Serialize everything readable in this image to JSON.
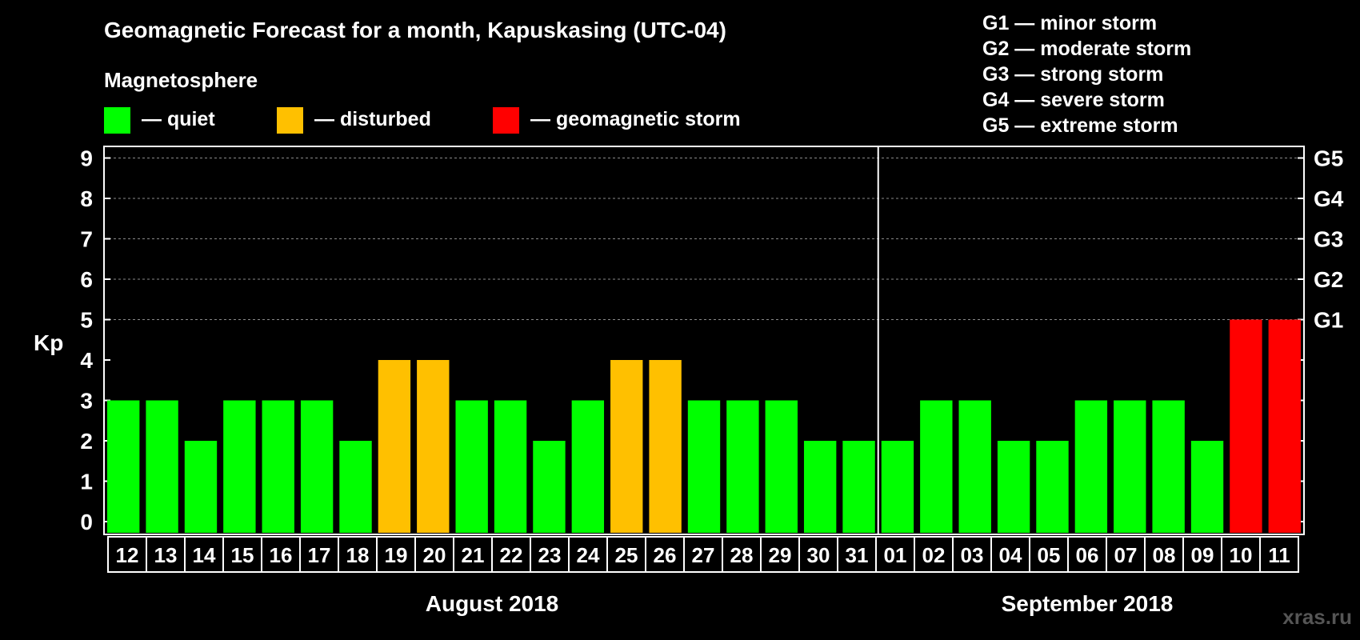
{
  "chart_data": {
    "type": "bar",
    "title": "Geomagnetic Forecast for a month, Kapuskasing (UTC-04)",
    "ylabel": "Kp",
    "ylim": [
      0,
      9
    ],
    "yticks": [
      "0",
      "1",
      "2",
      "3",
      "4",
      "5",
      "6",
      "7",
      "8",
      "9"
    ],
    "right_axis_labels": [
      {
        "kp": 5,
        "label": "G1"
      },
      {
        "kp": 6,
        "label": "G2"
      },
      {
        "kp": 7,
        "label": "G3"
      },
      {
        "kp": 8,
        "label": "G4"
      },
      {
        "kp": 9,
        "label": "G5"
      }
    ],
    "categories": [
      "12",
      "13",
      "14",
      "15",
      "16",
      "17",
      "18",
      "19",
      "20",
      "21",
      "22",
      "23",
      "24",
      "25",
      "26",
      "27",
      "28",
      "29",
      "30",
      "31",
      "01",
      "02",
      "03",
      "04",
      "05",
      "06",
      "07",
      "08",
      "09",
      "10",
      "11"
    ],
    "values": [
      3,
      3,
      2,
      3,
      3,
      3,
      2,
      4,
      4,
      3,
      3,
      2,
      3,
      4,
      4,
      3,
      3,
      3,
      2,
      2,
      2,
      3,
      3,
      2,
      2,
      3,
      3,
      3,
      2,
      5,
      5
    ],
    "status": [
      "quiet",
      "quiet",
      "quiet",
      "quiet",
      "quiet",
      "quiet",
      "quiet",
      "disturbed",
      "disturbed",
      "quiet",
      "quiet",
      "quiet",
      "quiet",
      "disturbed",
      "disturbed",
      "quiet",
      "quiet",
      "quiet",
      "quiet",
      "quiet",
      "quiet",
      "quiet",
      "quiet",
      "quiet",
      "quiet",
      "quiet",
      "quiet",
      "quiet",
      "quiet",
      "storm",
      "storm"
    ],
    "months": [
      {
        "label": "August 2018",
        "count": 20
      },
      {
        "label": "September 2018",
        "count": 11
      }
    ],
    "legend": {
      "title": "Magnetosphere",
      "items": [
        {
          "key": "quiet",
          "label": "— quiet",
          "color": "#00ff00"
        },
        {
          "key": "disturbed",
          "label": "— disturbed",
          "color": "#ffc000"
        },
        {
          "key": "storm",
          "label": "— geomagnetic storm",
          "color": "#ff0000"
        }
      ]
    },
    "storm_scale": [
      "G1 — minor storm",
      "G2 — moderate storm",
      "G3 — strong storm",
      "G4 — severe storm",
      "G5 — extreme storm"
    ]
  },
  "watermark": "xras.ru"
}
